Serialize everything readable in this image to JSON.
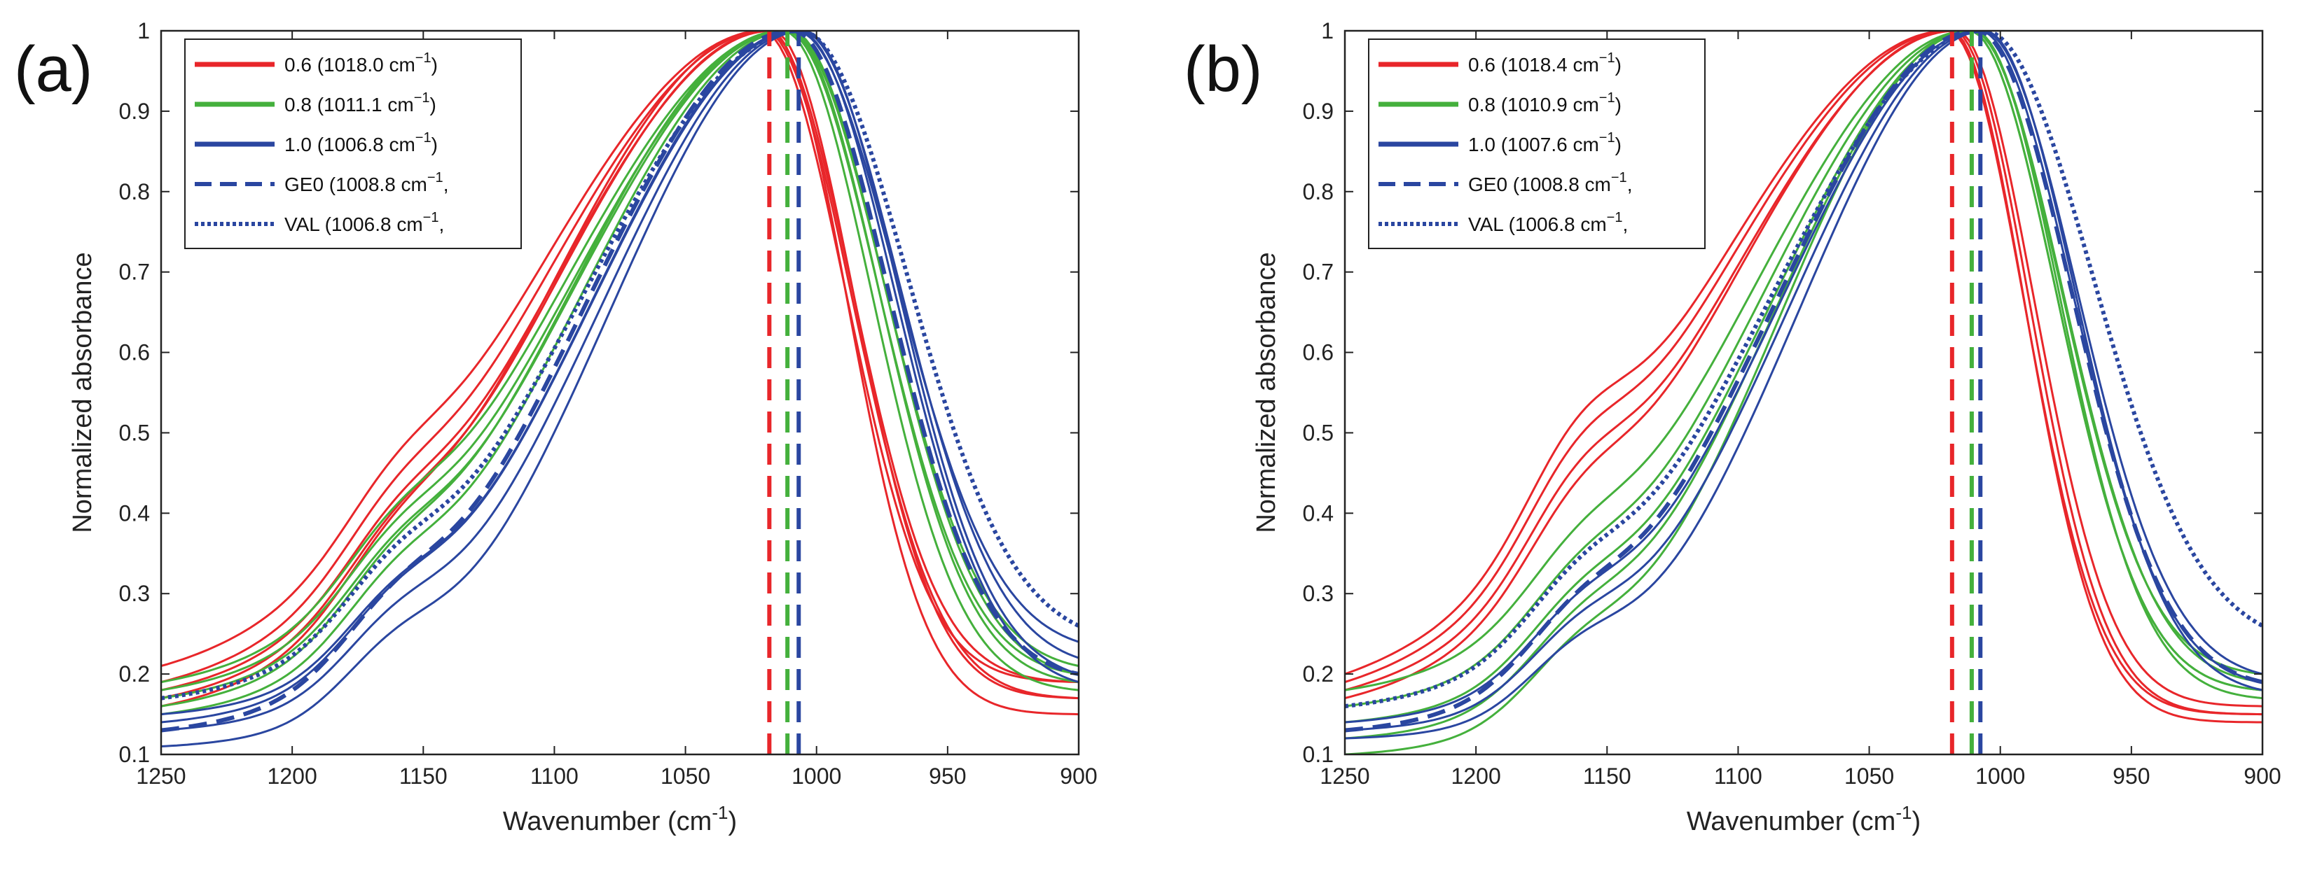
{
  "colors": {
    "red": "#e8262a",
    "green": "#44b03c",
    "blue": "#2a46a0"
  },
  "chart_data": [
    {
      "type": "line",
      "panel_label": "(a)",
      "xlabel_main": "Wavenumber (cm",
      "xlabel_sup": "-1",
      "xlabel_end": ")",
      "ylabel": "Normalized absorbance",
      "xlim": [
        1250,
        900
      ],
      "ylim": [
        0.1,
        1.0
      ],
      "xticks": [
        "1250",
        "1200",
        "1150",
        "1100",
        "1050",
        "1000",
        "950",
        "900"
      ],
      "yticks": [
        "0.1",
        "0.2",
        "0.3",
        "0.4",
        "0.5",
        "0.6",
        "0.7",
        "0.8",
        "0.9",
        "1"
      ],
      "legend_position": "top-left",
      "legend": [
        {
          "name": "0.6",
          "peak_label": "0.6 (1018.0 cm",
          "close": ")",
          "color": "red",
          "style": "solid"
        },
        {
          "name": "0.8",
          "peak_label": "0.8 (1011.1 cm",
          "close": ")",
          "color": "green",
          "style": "solid"
        },
        {
          "name": "1.0",
          "peak_label": "1.0 (1006.8 cm",
          "close": ")",
          "color": "blue",
          "style": "solid"
        },
        {
          "name": "GE0",
          "peak_label": "GE0 (1008.8 cm",
          "close": ",",
          "color": "blue",
          "style": "dashed"
        },
        {
          "name": "VAL",
          "peak_label": "VAL (1006.8 cm",
          "close": ",",
          "color": "blue",
          "style": "dotted"
        }
      ],
      "peak_lines": [
        {
          "x": 1018.0,
          "color": "red"
        },
        {
          "x": 1011.1,
          "color": "green"
        },
        {
          "x": 1006.8,
          "color": "blue"
        }
      ],
      "series": [
        {
          "group": "red",
          "style": "solid",
          "peak": 1020,
          "wl": 128,
          "wr": 47,
          "shoulder": 0.0,
          "start": 0.21,
          "end": 0.17
        },
        {
          "group": "red",
          "style": "solid",
          "peak": 1019,
          "wl": 125,
          "wr": 46,
          "shoulder": 0.0,
          "start": 0.19,
          "end": 0.19
        },
        {
          "group": "red",
          "style": "solid",
          "peak": 1017,
          "wl": 122,
          "wr": 44,
          "shoulder": 0.0,
          "start": 0.18,
          "end": 0.17
        },
        {
          "group": "red",
          "style": "solid",
          "peak": 1018,
          "wl": 120,
          "wr": 42,
          "shoulder": 0.0,
          "start": 0.17,
          "end": 0.15
        },
        {
          "group": "red",
          "style": "solid",
          "peak": 1021,
          "wl": 118,
          "wr": 45,
          "shoulder": 0.0,
          "start": 0.16,
          "end": 0.19
        },
        {
          "group": "green",
          "style": "solid",
          "peak": 1012,
          "wl": 122,
          "wr": 50,
          "shoulder": 0.0,
          "start": 0.19,
          "end": 0.2
        },
        {
          "group": "green",
          "style": "solid",
          "peak": 1011,
          "wl": 118,
          "wr": 49,
          "shoulder": 0.0,
          "start": 0.17,
          "end": 0.19
        },
        {
          "group": "green",
          "style": "solid",
          "peak": 1010,
          "wl": 115,
          "wr": 51,
          "shoulder": 0.0,
          "start": 0.15,
          "end": 0.2
        },
        {
          "group": "green",
          "style": "solid",
          "peak": 1013,
          "wl": 117,
          "wr": 48,
          "shoulder": 0.0,
          "start": 0.16,
          "end": 0.18
        },
        {
          "group": "green",
          "style": "solid",
          "peak": 1011,
          "wl": 120,
          "wr": 52,
          "shoulder": 0.0,
          "start": 0.18,
          "end": 0.21
        },
        {
          "group": "blue",
          "style": "solid",
          "peak": 1007,
          "wl": 112,
          "wr": 52,
          "shoulder": 0.0,
          "start": 0.14,
          "end": 0.19
        },
        {
          "group": "blue",
          "style": "solid",
          "peak": 1006,
          "wl": 108,
          "wr": 53,
          "shoulder": 0.0,
          "start": 0.13,
          "end": 0.22
        },
        {
          "group": "blue",
          "style": "solid",
          "peak": 1005,
          "wl": 105,
          "wr": 51,
          "shoulder": 0.0,
          "start": 0.11,
          "end": 0.2
        },
        {
          "group": "blue",
          "style": "solid",
          "peak": 1008,
          "wl": 110,
          "wr": 54,
          "shoulder": 0.0,
          "start": 0.15,
          "end": 0.24
        },
        {
          "group": "blue",
          "style": "dashed",
          "peak": 1009,
          "wl": 113,
          "wr": 51,
          "shoulder": 0.0,
          "start": 0.13,
          "end": 0.2
        },
        {
          "group": "blue",
          "style": "dotted",
          "peak": 1006,
          "wl": 118,
          "wr": 57,
          "shoulder": 0.0,
          "start": 0.17,
          "end": 0.26
        }
      ]
    },
    {
      "type": "line",
      "panel_label": "(b)",
      "xlabel_main": "Wavenumber (cm",
      "xlabel_sup": "-1",
      "xlabel_end": ")",
      "ylabel": "Normalized absorbance",
      "xlim": [
        1250,
        900
      ],
      "ylim": [
        0.1,
        1.0
      ],
      "xticks": [
        "1250",
        "1200",
        "1150",
        "1100",
        "1050",
        "1000",
        "950",
        "900"
      ],
      "yticks": [
        "0.1",
        "0.2",
        "0.3",
        "0.4",
        "0.5",
        "0.6",
        "0.7",
        "0.8",
        "0.9",
        "1"
      ],
      "legend_position": "top-left",
      "legend": [
        {
          "name": "0.6",
          "peak_label": "0.6 (1018.4 cm",
          "close": ")",
          "color": "red",
          "style": "solid"
        },
        {
          "name": "0.8",
          "peak_label": "0.8 (1010.9 cm",
          "close": ")",
          "color": "green",
          "style": "solid"
        },
        {
          "name": "1.0",
          "peak_label": "1.0 (1007.6 cm",
          "close": ")",
          "color": "blue",
          "style": "solid"
        },
        {
          "name": "GE0",
          "peak_label": "GE0 (1008.8 cm",
          "close": ",",
          "color": "blue",
          "style": "dashed"
        },
        {
          "name": "VAL",
          "peak_label": "VAL (1006.8 cm",
          "close": ",",
          "color": "blue",
          "style": "dotted"
        }
      ],
      "peak_lines": [
        {
          "x": 1018.4,
          "color": "red"
        },
        {
          "x": 1010.9,
          "color": "green"
        },
        {
          "x": 1007.6,
          "color": "blue"
        }
      ],
      "series": [
        {
          "group": "red",
          "style": "solid",
          "peak": 1020,
          "wl": 134,
          "wr": 41,
          "shoulder": 0.06,
          "start": 0.2,
          "end": 0.15
        },
        {
          "group": "red",
          "style": "solid",
          "peak": 1019,
          "wl": 131,
          "wr": 40,
          "shoulder": 0.05,
          "start": 0.19,
          "end": 0.14
        },
        {
          "group": "red",
          "style": "solid",
          "peak": 1017,
          "wl": 128,
          "wr": 42,
          "shoulder": 0.04,
          "start": 0.18,
          "end": 0.16
        },
        {
          "group": "red",
          "style": "solid",
          "peak": 1018,
          "wl": 125,
          "wr": 41,
          "shoulder": 0.03,
          "start": 0.17,
          "end": 0.15
        },
        {
          "group": "green",
          "style": "solid",
          "peak": 1012,
          "wl": 118,
          "wr": 47,
          "shoulder": 0.0,
          "start": 0.18,
          "end": 0.18
        },
        {
          "group": "green",
          "style": "solid",
          "peak": 1011,
          "wl": 114,
          "wr": 48,
          "shoulder": 0.0,
          "start": 0.16,
          "end": 0.2
        },
        {
          "group": "green",
          "style": "solid",
          "peak": 1010,
          "wl": 110,
          "wr": 46,
          "shoulder": 0.0,
          "start": 0.14,
          "end": 0.17
        },
        {
          "group": "green",
          "style": "solid",
          "peak": 1011,
          "wl": 106,
          "wr": 49,
          "shoulder": 0.0,
          "start": 0.12,
          "end": 0.19
        },
        {
          "group": "green",
          "style": "solid",
          "peak": 1012,
          "wl": 102,
          "wr": 47,
          "shoulder": 0.0,
          "start": 0.1,
          "end": 0.18
        },
        {
          "group": "blue",
          "style": "solid",
          "peak": 1008,
          "wl": 108,
          "wr": 50,
          "shoulder": 0.0,
          "start": 0.14,
          "end": 0.19
        },
        {
          "group": "blue",
          "style": "solid",
          "peak": 1007,
          "wl": 104,
          "wr": 51,
          "shoulder": 0.0,
          "start": 0.13,
          "end": 0.2
        },
        {
          "group": "blue",
          "style": "solid",
          "peak": 1006,
          "wl": 100,
          "wr": 49,
          "shoulder": 0.0,
          "start": 0.12,
          "end": 0.18
        },
        {
          "group": "blue",
          "style": "dashed",
          "peak": 1009,
          "wl": 110,
          "wr": 51,
          "shoulder": 0.0,
          "start": 0.13,
          "end": 0.19
        },
        {
          "group": "blue",
          "style": "dotted",
          "peak": 1006,
          "wl": 116,
          "wr": 58,
          "shoulder": 0.0,
          "start": 0.16,
          "end": 0.26
        }
      ]
    }
  ]
}
